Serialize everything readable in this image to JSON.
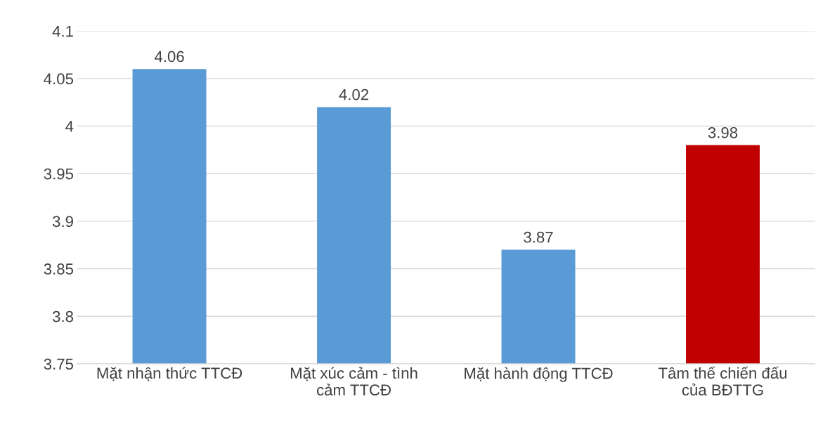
{
  "chart_data": {
    "type": "bar",
    "categories": [
      "Mặt nhận thức TTCĐ",
      "Mặt xúc cảm - tình\ncảm TTCĐ",
      "Mặt hành động TTCĐ",
      "Tâm thế chiến đấu\ncủa BĐTTG"
    ],
    "values": [
      4.06,
      4.02,
      3.87,
      3.98
    ],
    "colors": [
      "#5b9bd5",
      "#5b9bd5",
      "#5b9bd5",
      "#c00000"
    ],
    "ylim": [
      3.75,
      4.1
    ],
    "yticks": [
      3.75,
      3.8,
      3.85,
      3.9,
      3.95,
      4,
      4.05,
      4.1
    ],
    "grid": "y",
    "data_labels": true
  }
}
